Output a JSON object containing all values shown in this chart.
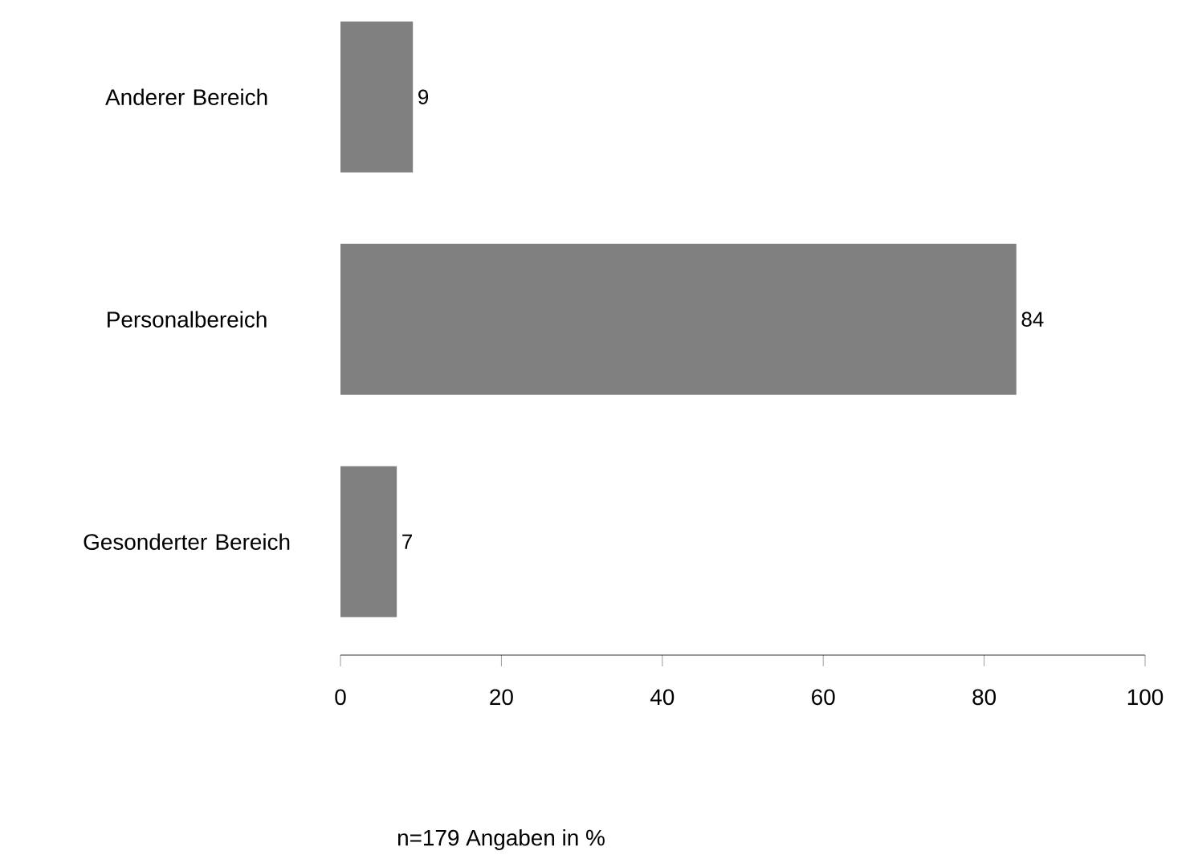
{
  "chart_data": {
    "type": "bar",
    "orientation": "horizontal",
    "categories": [
      "Anderer Bereich",
      "Personalbereich",
      "Gesonderter Bereich"
    ],
    "values": [
      9,
      84,
      7
    ],
    "color": "#808080",
    "xlim": [
      0,
      100
    ],
    "xticks": [
      0,
      20,
      40,
      60,
      80,
      100
    ],
    "data_labels": true,
    "annotations": [
      "n=179    Angaben in %"
    ]
  }
}
